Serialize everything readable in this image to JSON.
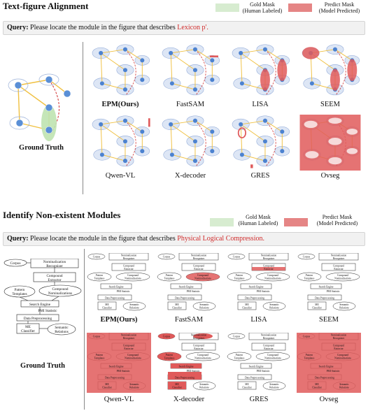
{
  "section1": {
    "title": "Text-figure Alignment",
    "legend": {
      "gold_line1": "Gold Mask",
      "gold_line2": "(Human Labeled)",
      "pred_line1": "Predict Mask",
      "pred_line2": "(Model Predicted)",
      "gold_color": "#d7ecd0",
      "pred_color": "#e58585"
    },
    "query": {
      "prefix": "Query:",
      "text": " Please locate the module in the figure that describes ",
      "highlight": "Lexicon p'."
    },
    "ground_truth_label": "Ground Truth",
    "models_row1": [
      "EPM(Ours)",
      "FastSAM",
      "LISA",
      "SEEM"
    ],
    "models_row2": [
      "Qwen-VL",
      "X-decoder",
      "GRES",
      "Ovseg"
    ],
    "node_labels": [
      "Lexicon p",
      "Lexicon p'",
      "Lexicon q",
      "Lexicon q'"
    ]
  },
  "section2": {
    "title": "Identify Non-existent Modules",
    "legend": {
      "gold_line1": "Gold Mask",
      "gold_line2": "(Human Labeled)",
      "pred_line1": "Predict Mask",
      "pred_line2": "(Model Predicted)"
    },
    "query": {
      "prefix": "Query:",
      "text": " Please locate the module in the figure that describes ",
      "highlight": "Physical Logical Compression."
    },
    "ground_truth_label": "Ground Truth",
    "models_row1": [
      "EPM(Ours)",
      "FastSAM",
      "LISA",
      "SEEM"
    ],
    "models_row2": [
      "Qwen-VL",
      "X-decoder",
      "GRES",
      "Ovseg"
    ],
    "flow_labels": {
      "corpus": "Corpus",
      "nom1": "Nominalization",
      "nom2": "Recognizer",
      "compound1": "Compound",
      "compound2": "Extractor",
      "pattern1": "Pattern",
      "pattern2": "Templates",
      "cnom1": "Compound",
      "cnom2": "Nominalizations",
      "search": "Search Engine",
      "pmi": "PMI Statistic",
      "dataprep": "Data Preprocessing",
      "me1": "ME",
      "me2": "Classifier",
      "sem1": "Semantic",
      "sem2": "Relations"
    }
  }
}
